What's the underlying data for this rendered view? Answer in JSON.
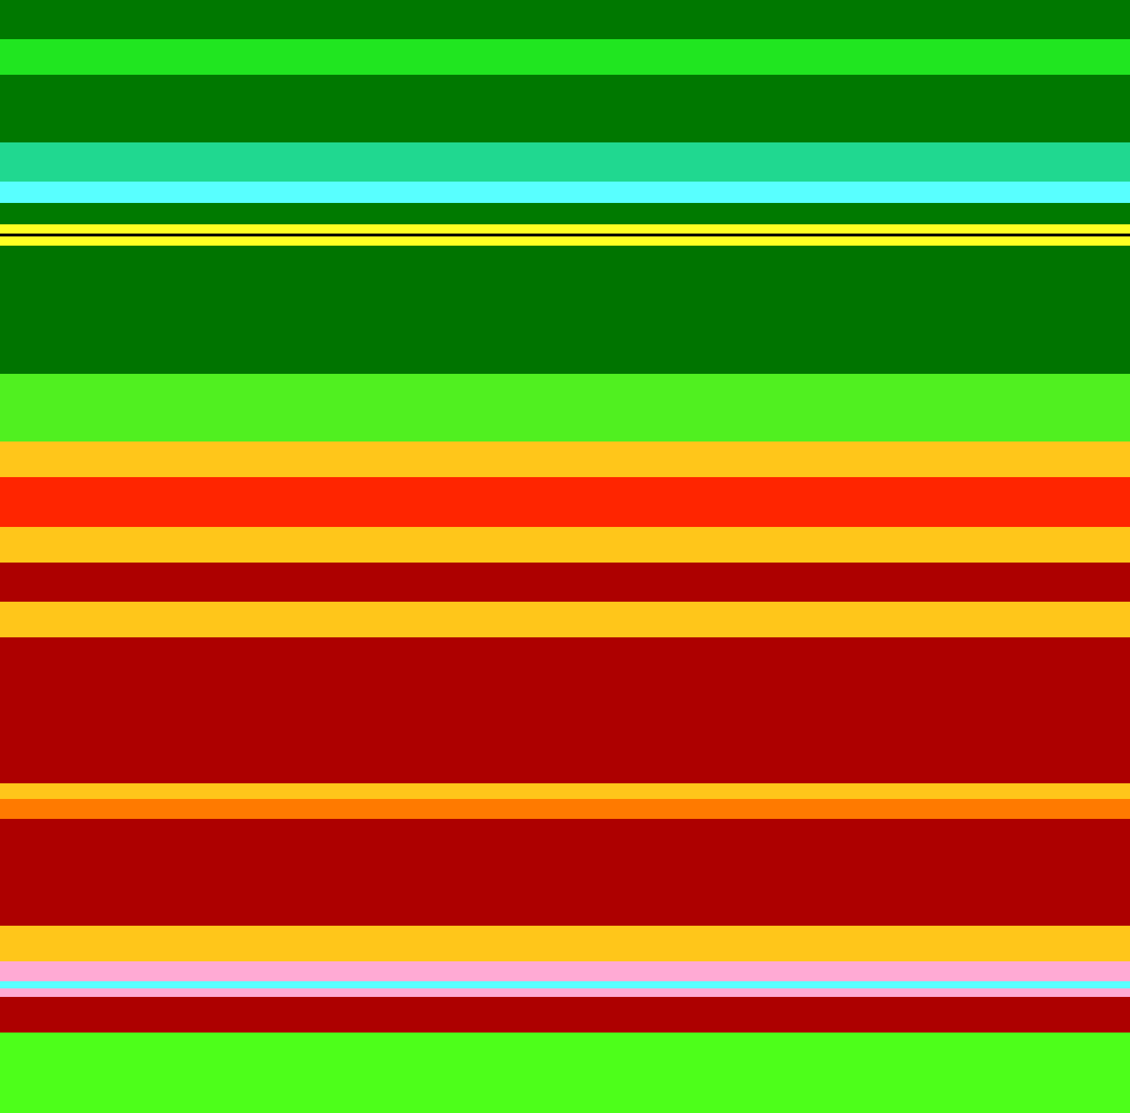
{
  "bands": [
    {
      "name": "band-1",
      "color": "#007800"
    },
    {
      "name": "band-2",
      "color": "#20e620"
    },
    {
      "name": "band-3",
      "color": "#007800"
    },
    {
      "name": "band-4",
      "color": "#20d890"
    },
    {
      "name": "band-5",
      "color": "#58ffff"
    },
    {
      "name": "band-6",
      "color": "#007a00"
    },
    {
      "name": "band-7",
      "color": "#ffff22"
    },
    {
      "name": "band-8",
      "color": "#007400"
    },
    {
      "name": "band-9",
      "color": "#50f020"
    },
    {
      "name": "band-10",
      "color": "#ffc61a"
    },
    {
      "name": "band-11",
      "color": "#ff2500"
    },
    {
      "name": "band-12",
      "color": "#ffc61a"
    },
    {
      "name": "band-13",
      "color": "#ad0000"
    },
    {
      "name": "band-14",
      "color": "#ffc61a"
    },
    {
      "name": "band-15",
      "color": "#ad0000"
    },
    {
      "name": "band-16",
      "color": "#ffc61a"
    },
    {
      "name": "band-17",
      "color": "#ad0000"
    },
    {
      "name": "band-18",
      "color": "#ffc61a"
    },
    {
      "name": "band-19",
      "color": "#ffaad4"
    },
    {
      "name": "band-20",
      "color": "#ad0000"
    },
    {
      "name": "band-21",
      "color": "#4dff1a"
    }
  ]
}
